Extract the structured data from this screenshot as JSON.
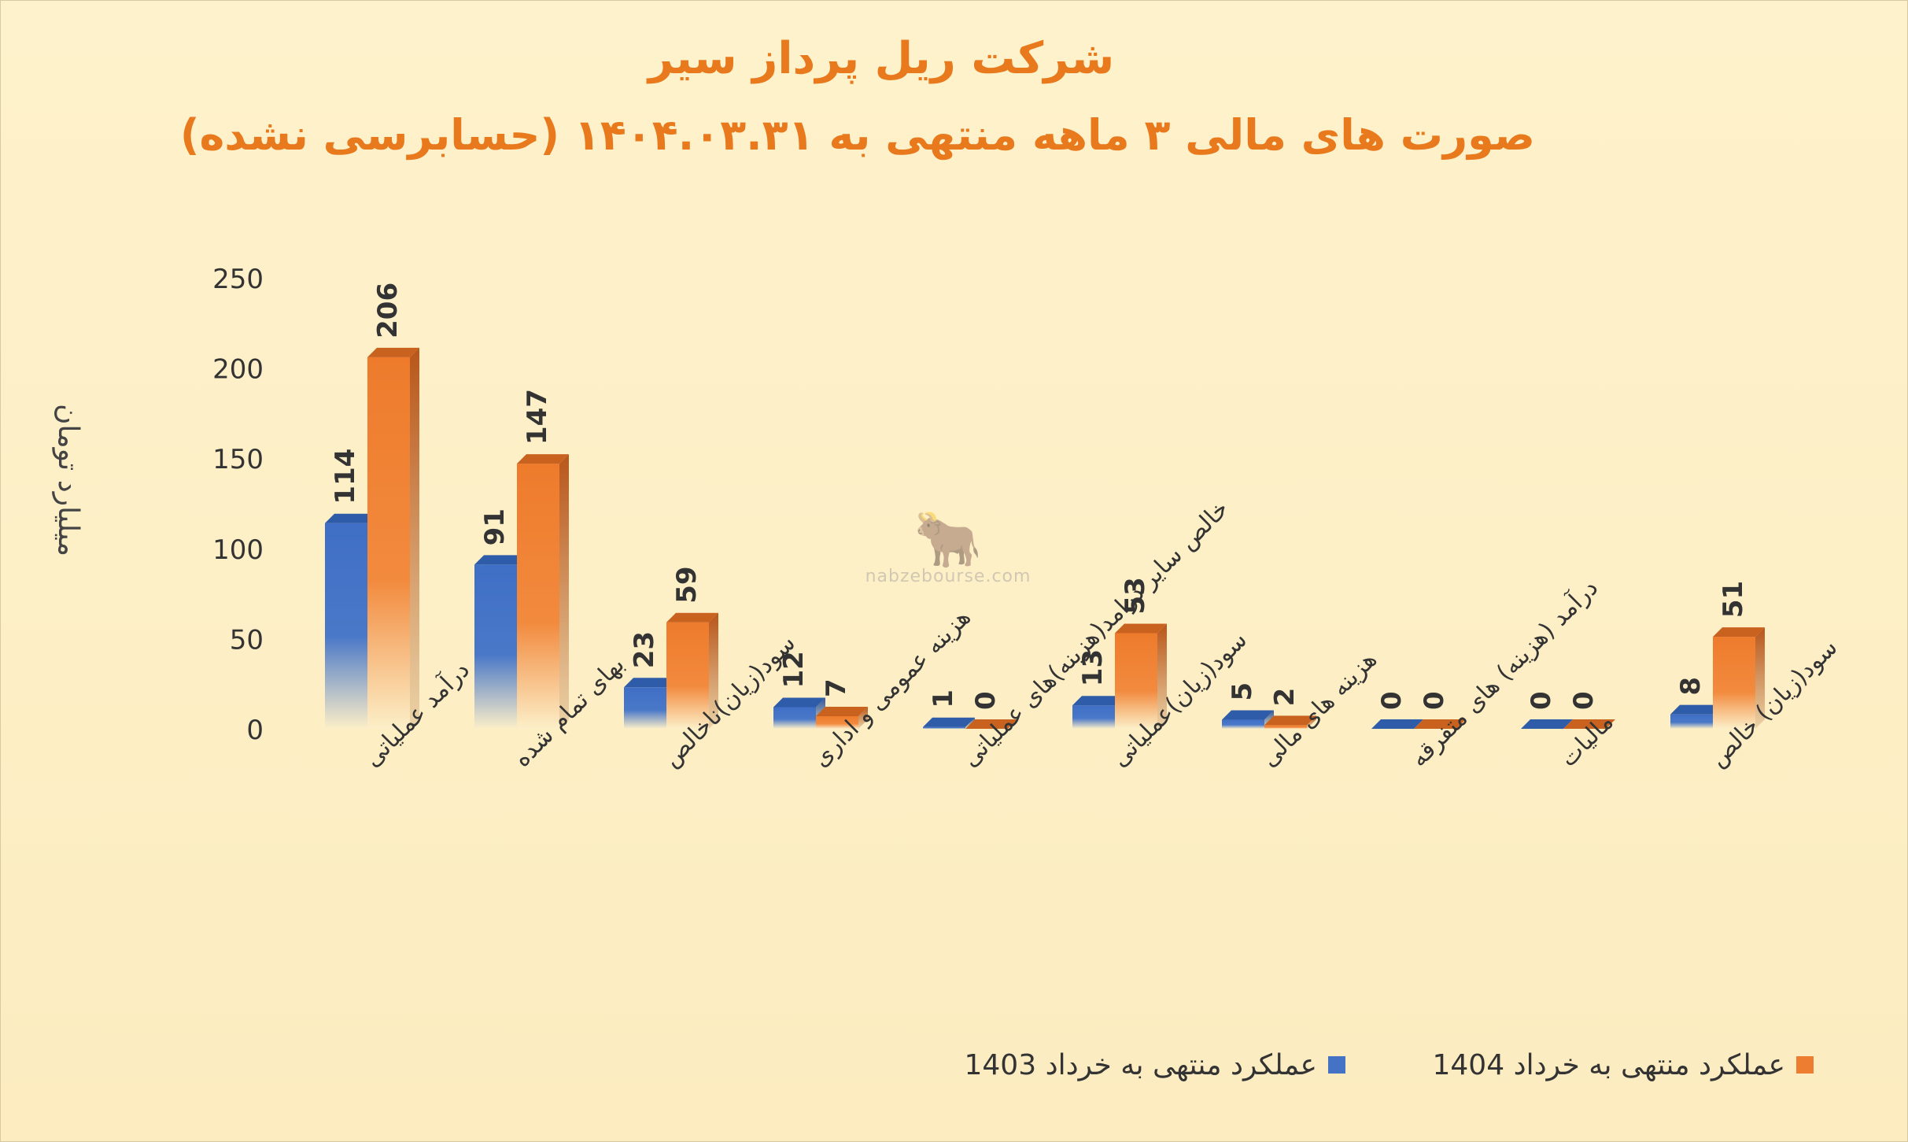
{
  "title": "شرکت ریل پرداز سیر",
  "subtitle": "صورت های مالی ۳ ماهه منتهی به ۱۴۰۴.۰۳.۳۱ (حسابرسی نشده)",
  "watermark_text": "nabzebourse.com",
  "colors": {
    "series1": "#4472C4",
    "series2": "#ED7D31",
    "title": "#E87A1D"
  },
  "chart_data": {
    "type": "bar",
    "title": "شرکت ریل پرداز سیر",
    "subtitle": "صورت های مالی ۳ ماهه منتهی به ۱۴۰۴.۰۳.۳۱ (حسابرسی نشده)",
    "xlabel": "",
    "ylabel": "میلیارد تومان",
    "ylim": [
      0,
      250
    ],
    "yticks": [
      0,
      50,
      100,
      150,
      200,
      250
    ],
    "grid": false,
    "legend_position": "bottom-right",
    "categories": [
      "درآمد عملیاتی",
      "بهای تمام شده",
      "سود(زیان)ناخالص",
      "هزینه عمومی و اداری",
      "خالص سایر درامد(هزینه)های عملیاتی",
      "سود(زیان)عملیاتی",
      "هزینه های مالی",
      "درآمد (هزینه) های متفرقه",
      "مالیات",
      "سود(زیان) خالص"
    ],
    "series": [
      {
        "name": "عملکرد منتهی به خرداد 1403",
        "values": [
          114,
          91,
          23,
          12,
          1,
          13,
          5,
          0,
          0,
          8
        ]
      },
      {
        "name": "عملکرد منتهی به خرداد 1404",
        "values": [
          206,
          147,
          59,
          7,
          0,
          53,
          2,
          0,
          0,
          51
        ]
      }
    ]
  }
}
